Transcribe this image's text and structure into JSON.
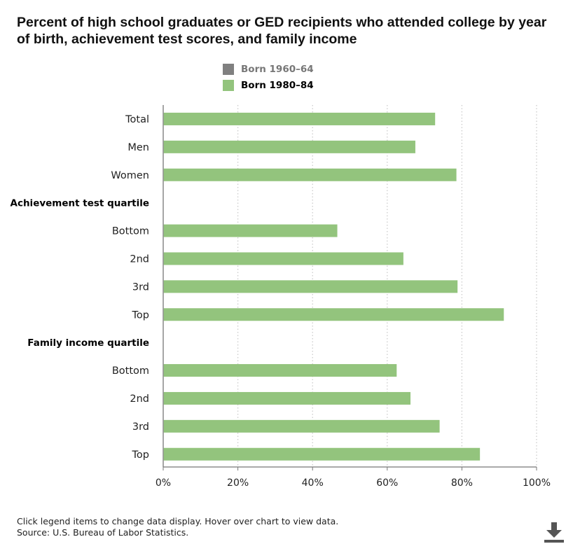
{
  "title": "Percent of high school graduates or GED recipients who attended college by year of birth, achievement test scores, and family income",
  "legend": [
    {
      "label": "Born 1960–64",
      "color": "#808080",
      "state": "hidden"
    },
    {
      "label": "Born 1980–84",
      "color": "#93c47d",
      "state": "active"
    }
  ],
  "chart_data": {
    "type": "bar",
    "orientation": "horizontal",
    "title": "Percent of high school graduates or GED recipients who attended college by year of birth, achievement test scores, and family income",
    "xlabel": "",
    "ylabel": "",
    "xlim": [
      0,
      100
    ],
    "x_ticks": [
      "0%",
      "20%",
      "40%",
      "60%",
      "80%",
      "100%"
    ],
    "grid": "vertical dotted",
    "categories": [
      {
        "label": "Total",
        "header": false
      },
      {
        "label": "Men",
        "header": false
      },
      {
        "label": "Women",
        "header": false
      },
      {
        "label": "Achievement test quartile",
        "header": true
      },
      {
        "label": "Bottom",
        "header": false
      },
      {
        "label": "2nd",
        "header": false
      },
      {
        "label": "3rd",
        "header": false
      },
      {
        "label": "Top",
        "header": false
      },
      {
        "label": "Family income quartile",
        "header": true
      },
      {
        "label": "Bottom",
        "header": false
      },
      {
        "label": "2nd",
        "header": false
      },
      {
        "label": "3rd",
        "header": false
      },
      {
        "label": "Top",
        "header": false
      }
    ],
    "series": [
      {
        "name": "Born 1960–64",
        "visible": false,
        "values": [
          null,
          null,
          null,
          null,
          null,
          null,
          null,
          null,
          null,
          null,
          null,
          null,
          null
        ]
      },
      {
        "name": "Born 1980–84",
        "visible": true,
        "values": [
          72.7,
          67.4,
          78.4,
          null,
          46.5,
          64.2,
          78.7,
          91.1,
          null,
          62.4,
          66.1,
          73.9,
          84.7
        ]
      }
    ]
  },
  "footer": {
    "note": "Click legend items to change data display. Hover over chart to view data.",
    "source": "Source: U.S. Bureau of Labor Statistics."
  },
  "icons": {
    "download": "download-icon"
  }
}
